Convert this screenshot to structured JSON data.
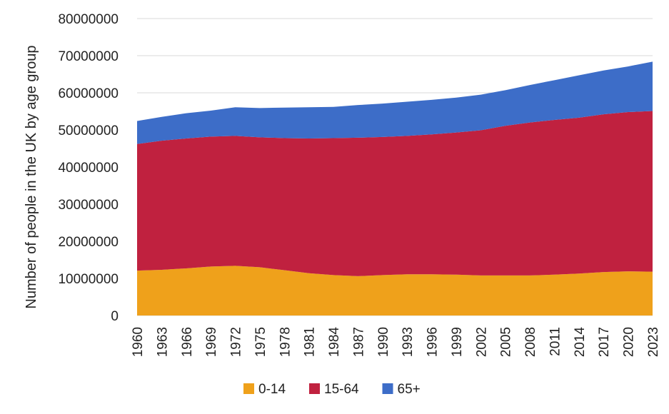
{
  "chart_data": {
    "type": "area",
    "stacked": true,
    "title": "",
    "xlabel": "",
    "ylabel": "Number of people in the UK by age group",
    "ylim": [
      0,
      80000000
    ],
    "y_ticks": [
      0,
      10000000,
      20000000,
      30000000,
      40000000,
      50000000,
      60000000,
      70000000,
      80000000
    ],
    "x_ticks": [
      1960,
      1963,
      1966,
      1969,
      1972,
      1975,
      1978,
      1981,
      1984,
      1987,
      1990,
      1993,
      1996,
      1999,
      2002,
      2005,
      2008,
      2011,
      2014,
      2017,
      2020,
      2023
    ],
    "grid": true,
    "legend_position": "bottom",
    "x": [
      1960,
      1963,
      1966,
      1969,
      1972,
      1975,
      1978,
      1981,
      1984,
      1987,
      1990,
      1993,
      1996,
      1999,
      2002,
      2005,
      2008,
      2011,
      2014,
      2017,
      2020,
      2023
    ],
    "series": [
      {
        "name": "0-14",
        "color": "#efa11b",
        "values": [
          12100000,
          12300000,
          12700000,
          13200000,
          13400000,
          13000000,
          12200000,
          11400000,
          10900000,
          10600000,
          10900000,
          11100000,
          11100000,
          11000000,
          10800000,
          10800000,
          10800000,
          11000000,
          11300000,
          11700000,
          11900000,
          11800000
        ]
      },
      {
        "name": "15-64",
        "color": "#c0213f",
        "values": [
          34100000,
          34800000,
          35000000,
          35000000,
          35000000,
          35000000,
          35600000,
          36300000,
          36900000,
          37300000,
          37200000,
          37300000,
          37700000,
          38300000,
          39100000,
          40300000,
          41200000,
          41700000,
          42000000,
          42500000,
          42900000,
          43300000
        ]
      },
      {
        "name": "65+",
        "color": "#3d6dc8",
        "values": [
          6200000,
          6400000,
          6800000,
          7000000,
          7700000,
          7900000,
          8200000,
          8400000,
          8400000,
          8800000,
          9000000,
          9200000,
          9300000,
          9400000,
          9600000,
          9600000,
          10100000,
          10700000,
          11400000,
          11800000,
          12300000,
          13300000
        ]
      }
    ]
  }
}
